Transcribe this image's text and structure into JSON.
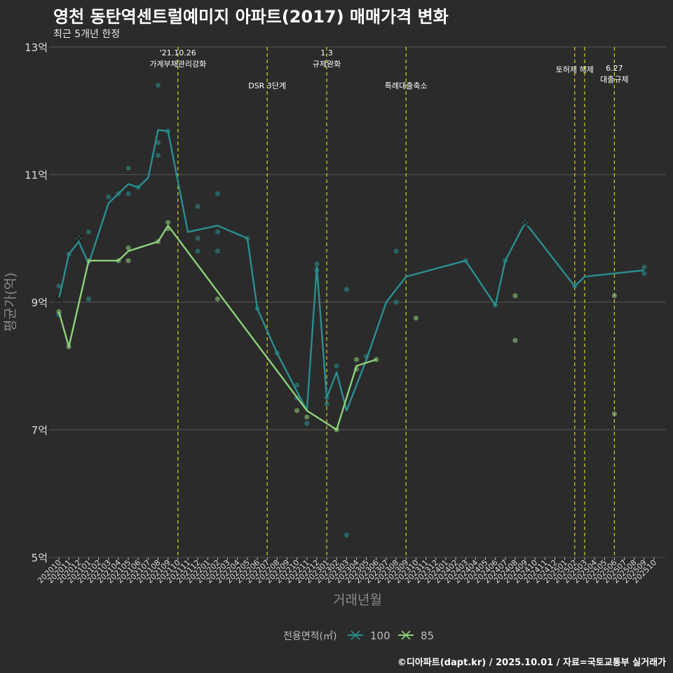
{
  "title": "영천 동탄역센트럴예미지 아파트(2017) 매매가격 변화",
  "subtitle": "최근 5개년 한정",
  "footer": "©디아파트(dapt.kr) / 2025.10.01 / 자료=국토교통부 실거래가",
  "chart_data": {
    "type": "line",
    "xlabel": "거래년월",
    "ylabel": "평균가(억)",
    "ylim": [
      5,
      13
    ],
    "y_ticks": [
      5,
      7,
      9,
      11,
      13
    ],
    "y_tick_suffix": "억",
    "x_categories": [
      "202010",
      "202011",
      "202012",
      "202101",
      "202102",
      "202103",
      "202104",
      "202105",
      "202106",
      "202107",
      "202108",
      "202109",
      "202110",
      "202111",
      "202112",
      "202201",
      "202202",
      "202203",
      "202204",
      "202205",
      "202206",
      "202207",
      "202208",
      "202209",
      "202210",
      "202211",
      "202212",
      "202301",
      "202302",
      "202303",
      "202304",
      "202305",
      "202306",
      "202307",
      "202308",
      "202309",
      "202310",
      "202311",
      "202312",
      "202401",
      "202402",
      "202403",
      "202404",
      "202405",
      "202406",
      "202407",
      "202408",
      "202409",
      "202410",
      "202411",
      "202412",
      "202501",
      "202502",
      "202503",
      "202504",
      "202505",
      "202506",
      "202507",
      "202508",
      "202509",
      "202510"
    ],
    "legend_title": "전용면적(㎡)",
    "grid": true,
    "events": [
      {
        "x": "202110",
        "label": "'21.10.26\n가계부채관리강화",
        "row": 1
      },
      {
        "x": "202207",
        "label": "DSR 3단계",
        "row": 3
      },
      {
        "x": "202301",
        "label": "1.3\n규제완화",
        "row": 1
      },
      {
        "x": "202309",
        "label": "특례대출축소",
        "row": 3
      },
      {
        "x": "202502",
        "label": "토허제 해제",
        "row": 2
      },
      {
        "x": "202503",
        "label": "",
        "row": 2
      },
      {
        "x": "202506",
        "label": "6.27\n대출규제",
        "row": 4
      }
    ],
    "series": [
      {
        "name": "100",
        "color": "#2a8f8f",
        "line": [
          [
            "202010",
            9.05
          ],
          [
            "202011",
            9.75
          ],
          [
            "202012",
            9.95
          ],
          [
            "202101",
            9.6
          ],
          [
            "202103",
            10.55
          ],
          [
            "202104",
            10.7
          ],
          [
            "202105",
            10.85
          ],
          [
            "202106",
            10.8
          ],
          [
            "202107",
            10.95
          ],
          [
            "202108",
            11.7
          ],
          [
            "202109",
            11.68
          ],
          [
            "202111",
            10.1
          ],
          [
            "202202",
            10.2
          ],
          [
            "202205",
            10.0
          ],
          [
            "202206",
            8.9
          ],
          [
            "202208",
            8.2
          ],
          [
            "202211",
            7.3
          ],
          [
            "202212",
            9.55
          ],
          [
            "202301",
            7.5
          ],
          [
            "202302",
            7.9
          ],
          [
            "202303",
            7.3
          ],
          [
            "202305",
            8.1
          ],
          [
            "202307",
            9.0
          ],
          [
            "202309",
            9.4
          ],
          [
            "202403",
            9.65
          ],
          [
            "202406",
            8.95
          ],
          [
            "202407",
            9.65
          ],
          [
            "202409",
            10.25
          ],
          [
            "202502",
            9.25
          ],
          [
            "202503",
            9.4
          ],
          [
            "202509",
            9.5
          ]
        ],
        "points": [
          [
            "202010",
            9.25
          ],
          [
            "202010",
            8.8
          ],
          [
            "202011",
            9.75
          ],
          [
            "202012",
            10.0
          ],
          [
            "202101",
            10.1
          ],
          [
            "202101",
            9.05
          ],
          [
            "202103",
            10.65
          ],
          [
            "202104",
            10.7
          ],
          [
            "202105",
            11.1
          ],
          [
            "202105",
            10.7
          ],
          [
            "202106",
            10.8
          ],
          [
            "202108",
            12.4
          ],
          [
            "202108",
            11.5
          ],
          [
            "202108",
            11.3
          ],
          [
            "202109",
            11.68
          ],
          [
            "202112",
            10.5
          ],
          [
            "202112",
            10.0
          ],
          [
            "202112",
            9.8
          ],
          [
            "202202",
            10.7
          ],
          [
            "202202",
            10.1
          ],
          [
            "202202",
            9.8
          ],
          [
            "202205",
            10.0
          ],
          [
            "202206",
            8.9
          ],
          [
            "202208",
            8.2
          ],
          [
            "202210",
            7.7
          ],
          [
            "202210",
            7.5
          ],
          [
            "202211",
            7.1
          ],
          [
            "202212",
            9.6
          ],
          [
            "202212",
            9.5
          ],
          [
            "202301",
            7.4
          ],
          [
            "202301",
            7.5
          ],
          [
            "202302",
            8.0
          ],
          [
            "202303",
            9.2
          ],
          [
            "202303",
            5.35
          ],
          [
            "202305",
            8.15
          ],
          [
            "202308",
            9.8
          ],
          [
            "202308",
            9.0
          ],
          [
            "202403",
            9.65
          ],
          [
            "202406",
            8.95
          ],
          [
            "202407",
            9.65
          ],
          [
            "202409",
            10.25
          ],
          [
            "202502",
            9.25
          ],
          [
            "202509",
            9.55
          ],
          [
            "202509",
            9.45
          ]
        ],
        "markers": [
          [
            "202010",
            9.05
          ],
          [
            "202012",
            10.0
          ],
          [
            "202409",
            10.25
          ]
        ]
      },
      {
        "name": "85",
        "color": "#8fd17a",
        "line": [
          [
            "202010",
            8.85
          ],
          [
            "202011",
            8.3
          ],
          [
            "202101",
            9.65
          ],
          [
            "202104",
            9.65
          ],
          [
            "202105",
            9.8
          ],
          [
            "202108",
            9.95
          ],
          [
            "202109",
            10.2
          ],
          [
            "202211",
            7.3
          ],
          [
            "202302",
            7.0
          ],
          [
            "202304",
            8.0
          ],
          [
            "202306",
            8.1
          ]
        ],
        "points": [
          [
            "202010",
            8.85
          ],
          [
            "202011",
            8.3
          ],
          [
            "202101",
            9.65
          ],
          [
            "202104",
            9.65
          ],
          [
            "202105",
            9.85
          ],
          [
            "202105",
            9.65
          ],
          [
            "202108",
            9.95
          ],
          [
            "202109",
            10.25
          ],
          [
            "202109",
            10.15
          ],
          [
            "202202",
            9.05
          ],
          [
            "202210",
            7.3
          ],
          [
            "202211",
            7.2
          ],
          [
            "202302",
            7.0
          ],
          [
            "202304",
            8.1
          ],
          [
            "202304",
            7.95
          ],
          [
            "202306",
            8.1
          ],
          [
            "202310",
            8.75
          ],
          [
            "202408",
            9.1
          ],
          [
            "202408",
            8.4
          ],
          [
            "202506",
            9.1
          ],
          [
            "202506",
            7.25
          ]
        ],
        "markers": []
      }
    ]
  }
}
